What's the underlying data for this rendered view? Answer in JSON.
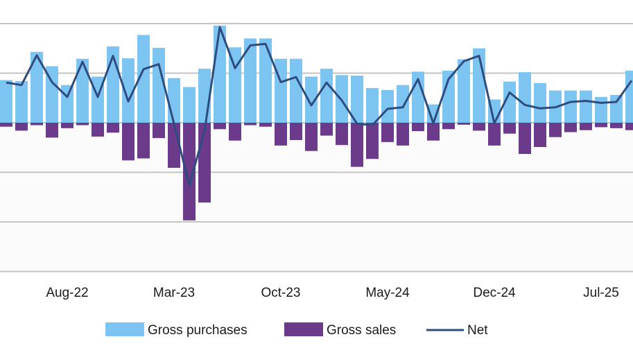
{
  "chart_data": {
    "type": "bar",
    "title": "",
    "xlabel": "",
    "ylabel": "",
    "ylim": [
      -30,
      20
    ],
    "grid_values": [
      20,
      10,
      0,
      -10,
      -20,
      -30
    ],
    "x_tick_labels": [
      {
        "label": "Aug-22",
        "index": 4
      },
      {
        "label": "Mar-23",
        "index": 11
      },
      {
        "label": "Oct-23",
        "index": 18
      },
      {
        "label": "May-24",
        "index": 25
      },
      {
        "label": "Dec-24",
        "index": 32
      },
      {
        "label": "Jul-25",
        "index": 39
      }
    ],
    "series": [
      {
        "name": "Gross purchases",
        "kind": "bar",
        "color": "#7CC4F2",
        "values": [
          8.6,
          8.4,
          14.3,
          11.4,
          7.6,
          12.9,
          9.3,
          15.4,
          13.0,
          17.7,
          15.1,
          9.0,
          7.2,
          10.9,
          19.6,
          15.2,
          17.0,
          17.0,
          12.9,
          12.9,
          9.3,
          10.9,
          9.6,
          9.5,
          7.0,
          6.6,
          7.6,
          10.3,
          3.7,
          10.5,
          12.8,
          15.0,
          4.7,
          8.3,
          10.2,
          8.0,
          6.5,
          6.5,
          6.5,
          5.2,
          5.6,
          10.5
        ]
      },
      {
        "name": "Gross sales",
        "kind": "bar",
        "color": "#6B3A8A",
        "values": [
          -0.8,
          -1.6,
          -0.5,
          -3.0,
          -1.1,
          -0.5,
          -2.8,
          -2.0,
          -7.6,
          -7.2,
          -3.1,
          -9.1,
          -19.7,
          -16.1,
          -1.3,
          -3.6,
          -0.5,
          -0.8,
          -4.6,
          -3.5,
          -5.7,
          -2.6,
          -4.5,
          -8.9,
          -7.3,
          -3.9,
          -4.6,
          -1.7,
          -3.6,
          -1.3,
          -0.4,
          -1.6,
          -4.6,
          -2.2,
          -6.3,
          -4.9,
          -2.9,
          -1.9,
          -1.5,
          -0.9,
          -1.1,
          -1.5
        ]
      },
      {
        "name": "Net",
        "kind": "line",
        "color": "#2E4C7E",
        "values": [
          8.1,
          7.6,
          13.6,
          8.2,
          5.2,
          12.3,
          5.2,
          13.5,
          4.3,
          10.8,
          11.8,
          -0.2,
          -12.6,
          -1.7,
          19.3,
          11.0,
          15.6,
          15.9,
          8.2,
          9.2,
          3.5,
          8.1,
          4.5,
          -0.2,
          -0.5,
          2.8,
          3.1,
          8.8,
          -0.1,
          8.8,
          12.4,
          13.5,
          -0.1,
          6.1,
          3.6,
          2.9,
          3.1,
          4.2,
          4.4,
          4.0,
          4.2,
          8.5
        ]
      }
    ],
    "legend": {
      "placement": "bottom-center"
    }
  }
}
